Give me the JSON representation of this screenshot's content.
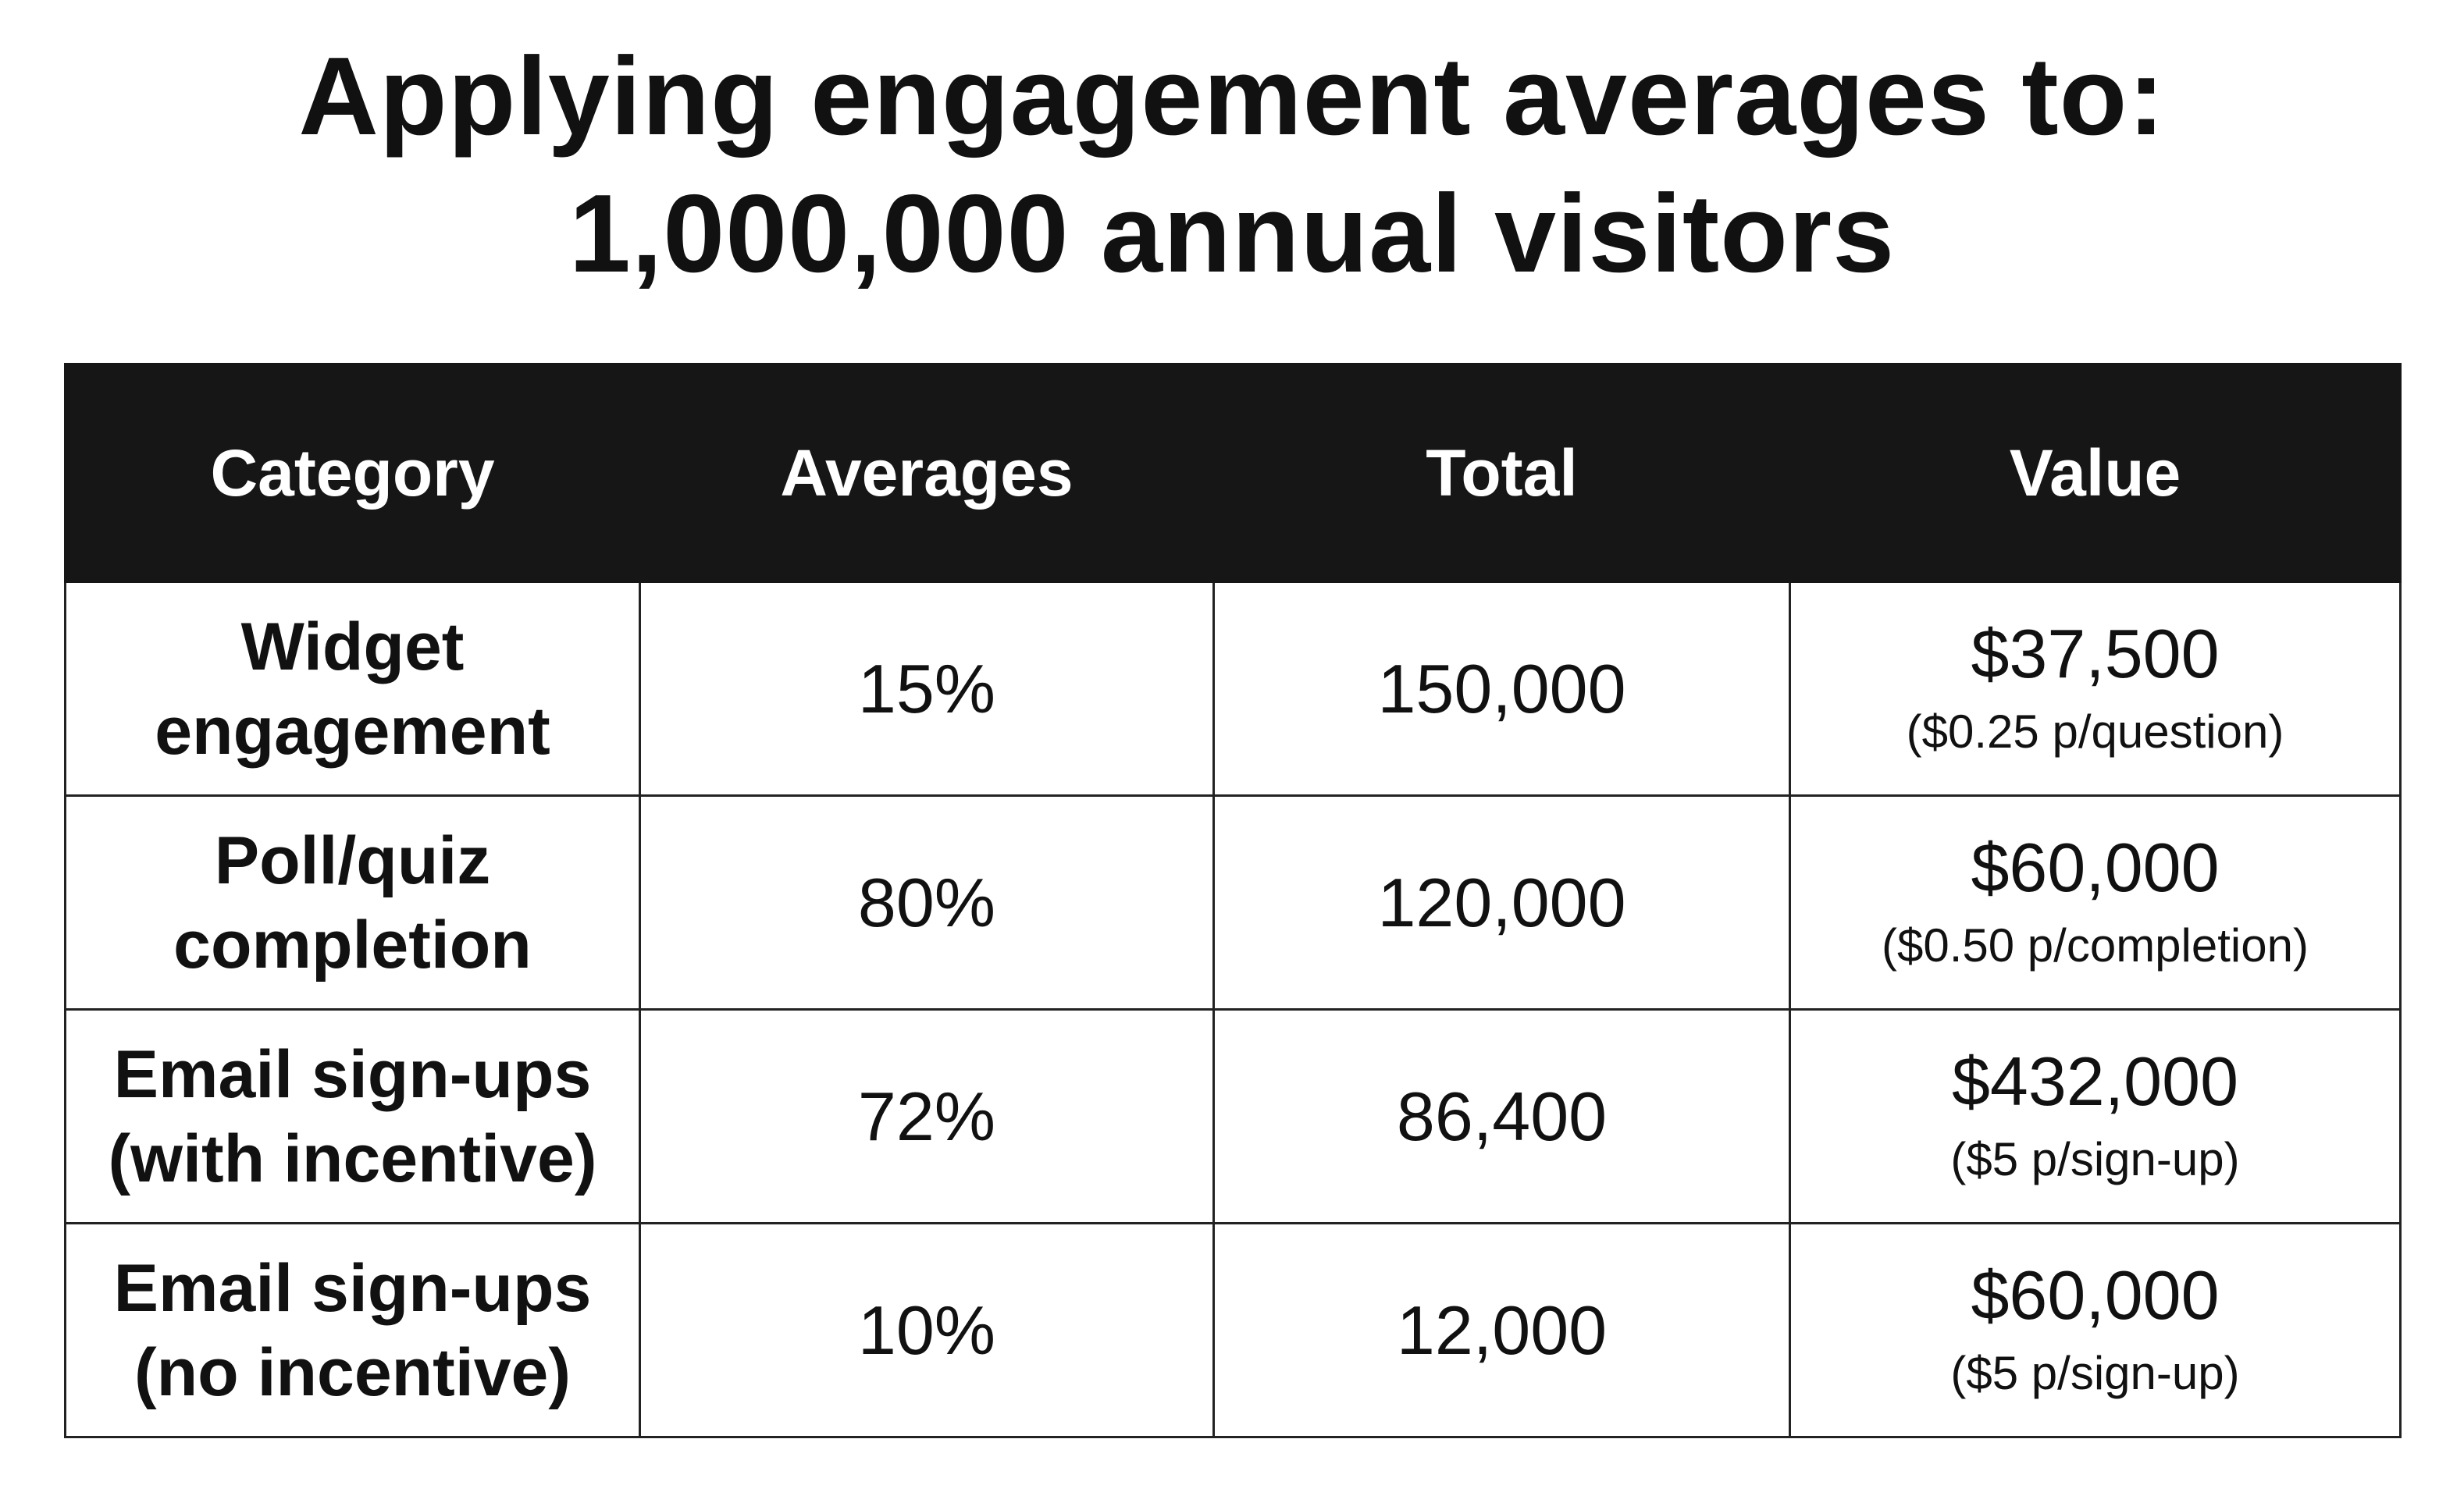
{
  "title": {
    "line1": "Applying engagement averages to:",
    "line2": "1,000,000 annual visitors"
  },
  "table": {
    "headers": [
      "Category",
      "Averages",
      "Total",
      "Value"
    ],
    "rows": [
      {
        "category_line1": "Widget",
        "category_line2": "engagement",
        "average": "15%",
        "total": "150,000",
        "value": "$37,500",
        "value_note": "($0.25 p/question)"
      },
      {
        "category_line1": "Poll/quiz",
        "category_line2": "completion",
        "average": "80%",
        "total": "120,000",
        "value": "$60,000",
        "value_note": "($0.50 p/completion)"
      },
      {
        "category_line1": "Email sign-ups",
        "category_line2": "(with incentive)",
        "average": "72%",
        "total": "86,400",
        "value": "$432,000",
        "value_note": "($5 p/sign-up)"
      },
      {
        "category_line1": "Email sign-ups",
        "category_line2": "(no incentive)",
        "average": "10%",
        "total": "12,000",
        "value": "$60,000",
        "value_note": "($5 p/sign-up)"
      }
    ]
  }
}
